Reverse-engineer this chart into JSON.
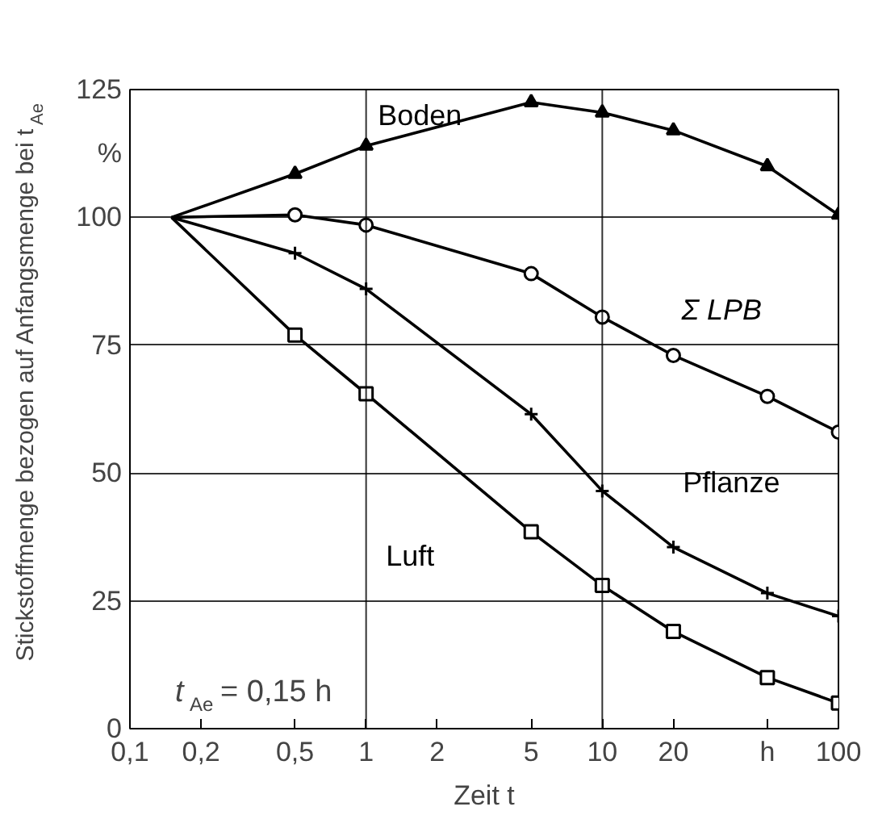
{
  "chart_data": {
    "type": "line",
    "xlabel": "Zeit t",
    "ylabel": "Stickstoffmenge bezogen auf Anfangsmenge bei t$_{Ae}$",
    "x": [
      0.15,
      0.5,
      1,
      5,
      10,
      20,
      50,
      100
    ],
    "series": [
      {
        "name": "Boden",
        "color": "#000000",
        "marker": "triangle",
        "values": [
          100,
          108.5,
          114,
          122.5,
          120.5,
          117,
          110,
          100.5
        ]
      },
      {
        "name": "Σ LPB",
        "color": "#000000",
        "marker": "circle",
        "values": [
          100,
          100.5,
          98.5,
          89,
          80.5,
          73,
          65,
          58
        ]
      },
      {
        "name": "Pflanze",
        "color": "#000000",
        "marker": "cross",
        "values": [
          100,
          93,
          86,
          61.5,
          46.5,
          35.5,
          26.5,
          22
        ]
      },
      {
        "name": "Luft",
        "color": "#000000",
        "marker": "square",
        "values": [
          100,
          77,
          65.5,
          38.5,
          28,
          19,
          10,
          5
        ]
      }
    ],
    "log": "x",
    "xlim": [
      0.1,
      100
    ],
    "ylim": [
      0,
      125
    ],
    "xticks": [
      {
        "value": 0.1,
        "label": "0,1"
      },
      {
        "value": 0.2,
        "label": "0,2"
      },
      {
        "value": 0.5,
        "label": "0,5"
      },
      1,
      2,
      5,
      10,
      20,
      {
        "value": 50,
        "label": "h"
      },
      100
    ],
    "yticks": [
      0,
      25,
      50,
      75,
      100,
      125
    ],
    "grid": "y",
    "ref_lines": [
      {
        "axis": "x",
        "value": 1,
        "label": null
      },
      {
        "axis": "x",
        "value": 10,
        "label": null
      }
    ],
    "annotations": [
      "%",
      "t$_{Ae}$ = 0,15 h"
    ],
    "line_style": "solid"
  }
}
